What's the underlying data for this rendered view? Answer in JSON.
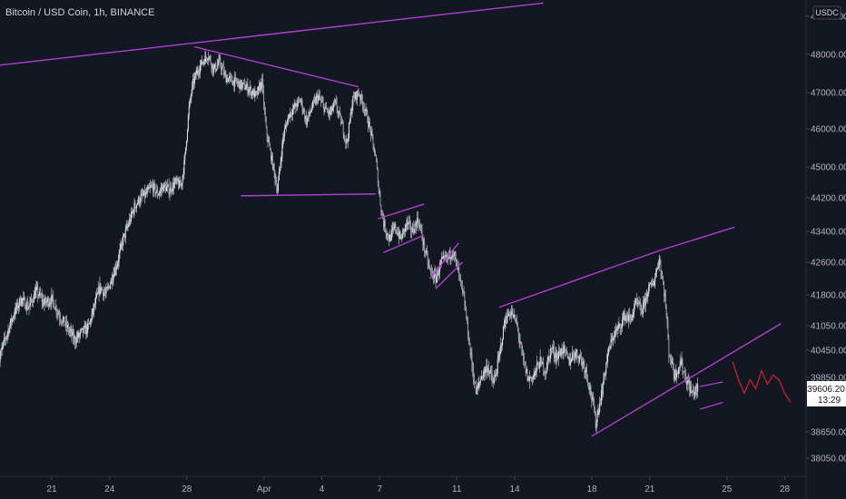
{
  "header": {
    "symbol_line": "Bitcoin / USD Coin, 1h, BINANCE"
  },
  "chart_data": {
    "type": "candlestick",
    "title": "Bitcoin / USD Coin, 1h, BINANCE",
    "price_unit": "USDC",
    "x_ticks": [
      {
        "label": "21",
        "day": 21
      },
      {
        "label": "24",
        "day": 24
      },
      {
        "label": "28",
        "day": 28
      },
      {
        "label": "Apr",
        "day": 32
      },
      {
        "label": "4",
        "day": 35
      },
      {
        "label": "7",
        "day": 38
      },
      {
        "label": "11",
        "day": 42
      },
      {
        "label": "14",
        "day": 45
      },
      {
        "label": "18",
        "day": 49
      },
      {
        "label": "21",
        "day": 52
      },
      {
        "label": "25",
        "day": 56
      },
      {
        "label": "28",
        "day": 59
      }
    ],
    "y_ticks": [
      {
        "label": "49000.00",
        "value": 49000
      },
      {
        "label": "48000.00",
        "value": 48000
      },
      {
        "label": "47000.00",
        "value": 47000
      },
      {
        "label": "46000.00",
        "value": 46000
      },
      {
        "label": "45000.00",
        "value": 45000
      },
      {
        "label": "44200.00",
        "value": 44200
      },
      {
        "label": "43400.00",
        "value": 43400
      },
      {
        "label": "42600.00",
        "value": 42600
      },
      {
        "label": "41800.00",
        "value": 41800
      },
      {
        "label": "41050.00",
        "value": 41050
      },
      {
        "label": "40450.00",
        "value": 40450
      },
      {
        "label": "39850.00",
        "value": 39850
      },
      {
        "label": "38650.00",
        "value": 38650
      },
      {
        "label": "38050.00",
        "value": 38050
      }
    ],
    "last_price": {
      "value": "39606.20",
      "countdown": "13:29"
    },
    "price_path": [
      [
        18.2,
        40100
      ],
      [
        18.5,
        40600
      ],
      [
        19.0,
        41300
      ],
      [
        19.4,
        41700
      ],
      [
        19.8,
        41500
      ],
      [
        20.2,
        41900
      ],
      [
        20.6,
        41600
      ],
      [
        21.0,
        41700
      ],
      [
        21.4,
        41300
      ],
      [
        21.8,
        41000
      ],
      [
        22.2,
        40700
      ],
      [
        22.6,
        40900
      ],
      [
        22.9,
        41000
      ],
      [
        23.2,
        41500
      ],
      [
        23.5,
        42000
      ],
      [
        23.8,
        41800
      ],
      [
        24.1,
        42200
      ],
      [
        24.4,
        42600
      ],
      [
        24.7,
        43200
      ],
      [
        25.0,
        43600
      ],
      [
        25.3,
        44000
      ],
      [
        25.6,
        44200
      ],
      [
        25.9,
        44300
      ],
      [
        26.2,
        44500
      ],
      [
        26.5,
        44300
      ],
      [
        26.8,
        44500
      ],
      [
        27.1,
        44400
      ],
      [
        27.4,
        44600
      ],
      [
        27.7,
        44500
      ],
      [
        27.9,
        45200
      ],
      [
        28.1,
        46500
      ],
      [
        28.3,
        47200
      ],
      [
        28.5,
        47500
      ],
      [
        28.8,
        47800
      ],
      [
        29.1,
        48000
      ],
      [
        29.4,
        47600
      ],
      [
        29.7,
        47800
      ],
      [
        30.0,
        47400
      ],
      [
        30.4,
        47300
      ],
      [
        30.8,
        47200
      ],
      [
        31.2,
        47100
      ],
      [
        31.6,
        46900
      ],
      [
        31.9,
        47300
      ],
      [
        32.1,
        46000
      ],
      [
        32.4,
        45200
      ],
      [
        32.7,
        44400
      ],
      [
        33.0,
        45800
      ],
      [
        33.3,
        46400
      ],
      [
        33.6,
        46600
      ],
      [
        33.9,
        46800
      ],
      [
        34.2,
        46200
      ],
      [
        34.5,
        46600
      ],
      [
        34.8,
        46900
      ],
      [
        35.1,
        46600
      ],
      [
        35.4,
        46400
      ],
      [
        35.7,
        46700
      ],
      [
        36.0,
        46200
      ],
      [
        36.3,
        45600
      ],
      [
        36.6,
        46800
      ],
      [
        36.9,
        47000
      ],
      [
        37.2,
        46600
      ],
      [
        37.5,
        46000
      ],
      [
        37.8,
        45200
      ],
      [
        38.0,
        44200
      ],
      [
        38.2,
        43600
      ],
      [
        38.5,
        43200
      ],
      [
        38.8,
        43500
      ],
      [
        39.1,
        43200
      ],
      [
        39.4,
        43600
      ],
      [
        39.7,
        43400
      ],
      [
        40.0,
        43700
      ],
      [
        40.3,
        43000
      ],
      [
        40.6,
        42400
      ],
      [
        40.9,
        42200
      ],
      [
        41.2,
        42600
      ],
      [
        41.5,
        42700
      ],
      [
        41.8,
        42900
      ],
      [
        42.1,
        42300
      ],
      [
        42.4,
        41600
      ],
      [
        42.7,
        40400
      ],
      [
        43.0,
        39500
      ],
      [
        43.3,
        39900
      ],
      [
        43.6,
        40100
      ],
      [
        43.9,
        39700
      ],
      [
        44.2,
        40300
      ],
      [
        44.5,
        41200
      ],
      [
        44.8,
        41400
      ],
      [
        45.1,
        41100
      ],
      [
        45.4,
        40300
      ],
      [
        45.7,
        39800
      ],
      [
        46.0,
        39900
      ],
      [
        46.3,
        40200
      ],
      [
        46.6,
        40000
      ],
      [
        46.9,
        40500
      ],
      [
        47.2,
        40300
      ],
      [
        47.5,
        40500
      ],
      [
        47.8,
        40200
      ],
      [
        48.1,
        40400
      ],
      [
        48.4,
        40300
      ],
      [
        48.7,
        40000
      ],
      [
        49.0,
        39400
      ],
      [
        49.2,
        38850
      ],
      [
        49.5,
        39500
      ],
      [
        49.8,
        40300
      ],
      [
        50.1,
        40800
      ],
      [
        50.4,
        41000
      ],
      [
        50.7,
        41300
      ],
      [
        51.0,
        41200
      ],
      [
        51.3,
        41600
      ],
      [
        51.6,
        41400
      ],
      [
        51.9,
        41900
      ],
      [
        52.2,
        42100
      ],
      [
        52.5,
        42700
      ],
      [
        52.8,
        41700
      ],
      [
        53.0,
        40400
      ],
      [
        53.3,
        39900
      ],
      [
        53.6,
        40200
      ],
      [
        53.9,
        39800
      ],
      [
        54.2,
        39500
      ],
      [
        54.5,
        39600
      ]
    ],
    "trendlines": [
      {
        "from": [
          18.0,
          47700
        ],
        "to": [
          46.5,
          49350
        ]
      },
      {
        "from": [
          28.4,
          48200
        ],
        "to": [
          36.9,
          47150
        ]
      },
      {
        "from": [
          30.8,
          44250
        ],
        "to": [
          37.8,
          44300
        ]
      },
      {
        "from": [
          37.9,
          43700
        ],
        "to": [
          40.3,
          44050
        ]
      },
      {
        "from": [
          38.2,
          42850
        ],
        "to": [
          40.3,
          43300
        ]
      },
      {
        "from": [
          40.6,
          42200
        ],
        "to": [
          42.1,
          43100
        ]
      },
      {
        "from": [
          40.9,
          41950
        ],
        "to": [
          42.3,
          42600
        ]
      },
      {
        "from": [
          44.2,
          41500
        ],
        "to": [
          52.5,
          42900
        ]
      },
      {
        "from": [
          52.5,
          42900
        ],
        "to": [
          56.4,
          43500
        ]
      },
      {
        "from": [
          49.0,
          38550
        ],
        "to": [
          58.8,
          41100
        ]
      },
      {
        "from": [
          54.6,
          39650
        ],
        "to": [
          55.8,
          39750
        ]
      },
      {
        "from": [
          54.6,
          39150
        ],
        "to": [
          55.8,
          39300
        ]
      }
    ],
    "projection": [
      [
        56.3,
        40200
      ],
      [
        56.6,
        39800
      ],
      [
        56.9,
        39500
      ],
      [
        57.2,
        39800
      ],
      [
        57.5,
        39600
      ],
      [
        57.8,
        40000
      ],
      [
        58.1,
        39700
      ],
      [
        58.4,
        39900
      ],
      [
        58.7,
        39800
      ],
      [
        59.0,
        39500
      ],
      [
        59.3,
        39300
      ]
    ],
    "grid": false
  },
  "colors": {
    "background": "#131722",
    "candles": "#d1d4dc",
    "trendline": "#b040d0",
    "projection": "#c0202f",
    "axis_text": "#b2b5be"
  }
}
